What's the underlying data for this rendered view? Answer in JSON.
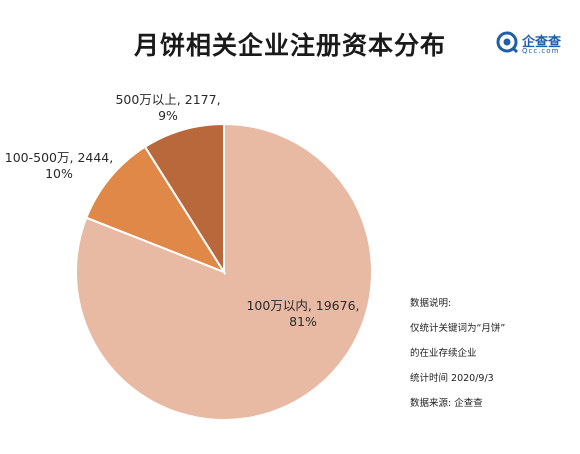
{
  "header": {
    "title": "月饼相关企业注册资本分布"
  },
  "brand": {
    "name": "企查查",
    "sub": "Qcc.com",
    "color": "#1f5fa8"
  },
  "chart_data": {
    "type": "pie",
    "title": "月饼相关企业注册资本分布",
    "slices": [
      {
        "name": "100万以内",
        "value": 19676,
        "percent": "81%",
        "color": "#e8b9a3"
      },
      {
        "name": "100-500万",
        "value": 2444,
        "percent": "10%",
        "color": "#e08848"
      },
      {
        "name": "500万以上",
        "value": 2177,
        "percent": "9%",
        "color": "#b8683a"
      }
    ]
  },
  "labels": {
    "slice0_line1": "100万以内, 19676,",
    "slice0_line2": "81%",
    "slice1_line1": "100-500万, 2444,",
    "slice1_line2": "10%",
    "slice2_line1": "500万以上, 2177,",
    "slice2_line2": "9%"
  },
  "notes": {
    "line1": "数据说明:",
    "line2": "仅统计关键词为“月饼”",
    "line3": "的在业存续企业",
    "line4": "统计时间 2020/9/3",
    "line5": "数据来源:  企查查"
  }
}
